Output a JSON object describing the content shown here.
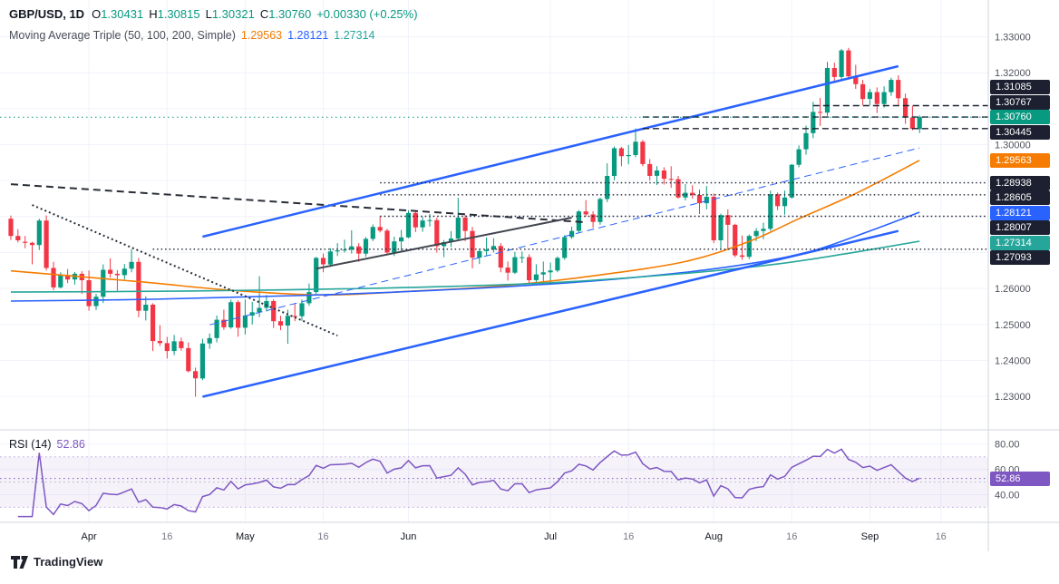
{
  "header": {
    "symbol_title": "GBP/USD, 1D",
    "ohlc": {
      "open_label": "O",
      "open": "1.30431",
      "high_label": "H",
      "high": "1.30815",
      "low_label": "L",
      "low": "1.30321",
      "close_label": "C",
      "close": "1.30760",
      "change": "+0.00330 (+0.25%)"
    },
    "indicator": {
      "name": "Moving Average Triple (50, 100, 200, Simple)",
      "ma50_value": "1.29563",
      "ma100_value": "1.28121",
      "ma200_value": "1.27314"
    }
  },
  "rsi_pane": {
    "label": "RSI (14)",
    "value": "52.86"
  },
  "footer": {
    "logo_text": "TradingView"
  },
  "colors": {
    "up": "#089981",
    "down": "#f23645",
    "ma50": "#f57c00",
    "ma100": "#2962ff",
    "ma200": "#26a69a",
    "rsi": "#7e57c2",
    "level_badge": "#1c2030",
    "grid": "#f0f3fa",
    "axis_text": "#50535e",
    "separator": "#d1d4dc"
  },
  "chart_data": {
    "type": "candlestick",
    "title": "GBP/USD, 1D",
    "price_axis": {
      "min": 1.2217,
      "max": 1.3382,
      "tick_min": 1.23,
      "tick_max": 1.33,
      "tick_step": 0.01,
      "visible_labels": [
        "1.33000",
        "1.32000",
        "1.30000",
        "1.26000",
        "1.25000",
        "1.24000",
        "1.23000"
      ]
    },
    "time_axis": {
      "labels": [
        {
          "t": "Apr",
          "i": 11,
          "major": true
        },
        {
          "t": "16",
          "i": 22,
          "major": false
        },
        {
          "t": "May",
          "i": 33,
          "major": true
        },
        {
          "t": "16",
          "i": 44,
          "major": false
        },
        {
          "t": "Jun",
          "i": 56,
          "major": true
        },
        {
          "t": "Jul",
          "i": 76,
          "major": true
        },
        {
          "t": "16",
          "i": 87,
          "major": false
        },
        {
          "t": "Aug",
          "i": 99,
          "major": true
        },
        {
          "t": "16",
          "i": 110,
          "major": false
        },
        {
          "t": "Sep",
          "i": 121,
          "major": true
        },
        {
          "t": "16",
          "i": 131,
          "major": false
        }
      ]
    },
    "last_price": 1.3076,
    "candles": [
      [
        1.2794,
        1.2803,
        1.2735,
        1.2746
      ],
      [
        1.2746,
        1.2765,
        1.2728,
        1.2734
      ],
      [
        1.273,
        1.2746,
        1.2712,
        1.2727
      ],
      [
        1.2727,
        1.273,
        1.2667,
        1.2721
      ],
      [
        1.2721,
        1.2794,
        1.2707,
        1.2789
      ],
      [
        1.2789,
        1.2803,
        1.265,
        1.2657
      ],
      [
        1.2657,
        1.2674,
        1.2595,
        1.2603
      ],
      [
        1.2603,
        1.2645,
        1.26,
        1.2637
      ],
      [
        1.2637,
        1.2654,
        1.2615,
        1.2625
      ],
      [
        1.2625,
        1.2646,
        1.2611,
        1.2641
      ],
      [
        1.2641,
        1.2648,
        1.2585,
        1.2623
      ],
      [
        1.2623,
        1.265,
        1.2538,
        1.2551
      ],
      [
        1.2551,
        1.2585,
        1.254,
        1.2577
      ],
      [
        1.2577,
        1.2667,
        1.256,
        1.2652
      ],
      [
        1.2652,
        1.2684,
        1.263,
        1.2641
      ],
      [
        1.2641,
        1.2651,
        1.2594,
        1.2637
      ],
      [
        1.2637,
        1.2668,
        1.2625,
        1.2655
      ],
      [
        1.2655,
        1.2709,
        1.2645,
        1.2674
      ],
      [
        1.2674,
        1.2685,
        1.252,
        1.2538
      ],
      [
        1.2538,
        1.2578,
        1.2511,
        1.2555
      ],
      [
        1.2555,
        1.2559,
        1.2426,
        1.2454
      ],
      [
        1.2454,
        1.2498,
        1.244,
        1.2448
      ],
      [
        1.2448,
        1.2465,
        1.2405,
        1.2426
      ],
      [
        1.2426,
        1.2471,
        1.2415,
        1.2453
      ],
      [
        1.2453,
        1.2463,
        1.2427,
        1.2434
      ],
      [
        1.2434,
        1.245,
        1.2367,
        1.237
      ],
      [
        1.237,
        1.238,
        1.2299,
        1.235
      ],
      [
        1.235,
        1.246,
        1.2345,
        1.2447
      ],
      [
        1.2447,
        1.2475,
        1.2432,
        1.2462
      ],
      [
        1.2462,
        1.2525,
        1.245,
        1.2513
      ],
      [
        1.2513,
        1.2541,
        1.2485,
        1.2492
      ],
      [
        1.2492,
        1.2569,
        1.2488,
        1.2562
      ],
      [
        1.2562,
        1.2567,
        1.2466,
        1.2491
      ],
      [
        1.2491,
        1.2569,
        1.2472,
        1.2525
      ],
      [
        1.2525,
        1.2563,
        1.25,
        1.2534
      ],
      [
        1.2534,
        1.2634,
        1.252,
        1.2546
      ],
      [
        1.2546,
        1.2582,
        1.2536,
        1.2565
      ],
      [
        1.2565,
        1.257,
        1.249,
        1.2509
      ],
      [
        1.2509,
        1.2524,
        1.2484,
        1.2497
      ],
      [
        1.2497,
        1.2541,
        1.2446,
        1.2524
      ],
      [
        1.2524,
        1.2559,
        1.2509,
        1.2523
      ],
      [
        1.2523,
        1.2569,
        1.251,
        1.2559
      ],
      [
        1.2559,
        1.2614,
        1.2552,
        1.259
      ],
      [
        1.259,
        1.2688,
        1.2584,
        1.2685
      ],
      [
        1.2685,
        1.2697,
        1.2645,
        1.2667
      ],
      [
        1.2667,
        1.2712,
        1.266,
        1.2703
      ],
      [
        1.2703,
        1.2726,
        1.269,
        1.2706
      ],
      [
        1.2706,
        1.2736,
        1.27,
        1.2708
      ],
      [
        1.2708,
        1.2762,
        1.2697,
        1.2717
      ],
      [
        1.2717,
        1.2726,
        1.2674,
        1.2697
      ],
      [
        1.2697,
        1.2743,
        1.2688,
        1.2738
      ],
      [
        1.2738,
        1.2778,
        1.2732,
        1.2771
      ],
      [
        1.2771,
        1.2801,
        1.2756,
        1.2761
      ],
      [
        1.2761,
        1.2766,
        1.2695,
        1.27
      ],
      [
        1.27,
        1.2744,
        1.269,
        1.2731
      ],
      [
        1.2731,
        1.2763,
        1.2705,
        1.2742
      ],
      [
        1.2742,
        1.2817,
        1.274,
        1.281
      ],
      [
        1.281,
        1.2818,
        1.2757,
        1.277
      ],
      [
        1.277,
        1.2799,
        1.2758,
        1.2789
      ],
      [
        1.2789,
        1.2807,
        1.2772,
        1.279
      ],
      [
        1.279,
        1.2797,
        1.27,
        1.2718
      ],
      [
        1.2718,
        1.2735,
        1.2687,
        1.2729
      ],
      [
        1.2729,
        1.276,
        1.2715,
        1.2739
      ],
      [
        1.2739,
        1.2852,
        1.2735,
        1.2797
      ],
      [
        1.2797,
        1.2804,
        1.2732,
        1.276
      ],
      [
        1.276,
        1.2771,
        1.2656,
        1.2686
      ],
      [
        1.2686,
        1.2711,
        1.2668,
        1.2704
      ],
      [
        1.2704,
        1.2742,
        1.2691,
        1.2708
      ],
      [
        1.2708,
        1.274,
        1.27,
        1.2718
      ],
      [
        1.2718,
        1.2726,
        1.2645,
        1.2658
      ],
      [
        1.2658,
        1.2675,
        1.2622,
        1.2644
      ],
      [
        1.2644,
        1.2702,
        1.264,
        1.2687
      ],
      [
        1.2687,
        1.2703,
        1.2671,
        1.2687
      ],
      [
        1.2687,
        1.2695,
        1.2616,
        1.2623
      ],
      [
        1.2623,
        1.2667,
        1.2612,
        1.2639
      ],
      [
        1.2639,
        1.2675,
        1.2613,
        1.2645
      ],
      [
        1.2645,
        1.2672,
        1.2615,
        1.265
      ],
      [
        1.265,
        1.2689,
        1.2645,
        1.2685
      ],
      [
        1.2685,
        1.2748,
        1.268,
        1.2743
      ],
      [
        1.2743,
        1.2772,
        1.2738,
        1.276
      ],
      [
        1.276,
        1.2818,
        1.2753,
        1.2814
      ],
      [
        1.2814,
        1.2846,
        1.28,
        1.2806
      ],
      [
        1.2806,
        1.2815,
        1.2769,
        1.2785
      ],
      [
        1.2785,
        1.2853,
        1.2777,
        1.2849
      ],
      [
        1.2849,
        1.2948,
        1.284,
        1.2913
      ],
      [
        1.2913,
        1.2995,
        1.2901,
        1.299
      ],
      [
        1.299,
        1.2994,
        1.294,
        1.2968
      ],
      [
        1.2968,
        1.2999,
        1.2945,
        1.2971
      ],
      [
        1.2971,
        1.3045,
        1.2965,
        1.3008
      ],
      [
        1.3008,
        1.3013,
        1.294,
        1.2946
      ],
      [
        1.2946,
        1.296,
        1.29,
        1.2913
      ],
      [
        1.2913,
        1.294,
        1.2888,
        1.2928
      ],
      [
        1.2928,
        1.2937,
        1.2889,
        1.2905
      ],
      [
        1.2905,
        1.294,
        1.288,
        1.2904
      ],
      [
        1.2904,
        1.2913,
        1.285,
        1.2853
      ],
      [
        1.2853,
        1.289,
        1.2845,
        1.2866
      ],
      [
        1.2866,
        1.2887,
        1.285,
        1.286
      ],
      [
        1.286,
        1.2875,
        1.2807,
        1.2837
      ],
      [
        1.2837,
        1.2885,
        1.282,
        1.2855
      ],
      [
        1.2855,
        1.2864,
        1.2726,
        1.2734
      ],
      [
        1.2734,
        1.2808,
        1.2707,
        1.2804
      ],
      [
        1.2804,
        1.282,
        1.2708,
        1.2777
      ],
      [
        1.2777,
        1.278,
        1.2687,
        1.2692
      ],
      [
        1.2692,
        1.2747,
        1.268,
        1.2688
      ],
      [
        1.2688,
        1.275,
        1.2682,
        1.2746
      ],
      [
        1.2746,
        1.2768,
        1.2732,
        1.276
      ],
      [
        1.276,
        1.2783,
        1.2737,
        1.2766
      ],
      [
        1.2766,
        1.2872,
        1.276,
        1.2862
      ],
      [
        1.2862,
        1.2867,
        1.2818,
        1.2829
      ],
      [
        1.2829,
        1.2872,
        1.2805,
        1.2853
      ],
      [
        1.2853,
        1.2946,
        1.285,
        1.2944
      ],
      [
        1.2944,
        1.2998,
        1.2937,
        1.2987
      ],
      [
        1.2987,
        1.3053,
        1.2972,
        1.3032
      ],
      [
        1.3032,
        1.3119,
        1.3018,
        1.3091
      ],
      [
        1.3091,
        1.313,
        1.3052,
        1.3089
      ],
      [
        1.3089,
        1.323,
        1.308,
        1.3213
      ],
      [
        1.3213,
        1.3228,
        1.3175,
        1.3188
      ],
      [
        1.3188,
        1.3266,
        1.318,
        1.3262
      ],
      [
        1.3262,
        1.3269,
        1.3185,
        1.319
      ],
      [
        1.319,
        1.3222,
        1.3155,
        1.3168
      ],
      [
        1.3168,
        1.318,
        1.311,
        1.3127
      ],
      [
        1.3127,
        1.3155,
        1.311,
        1.3146
      ],
      [
        1.3146,
        1.3159,
        1.3088,
        1.3113
      ],
      [
        1.3113,
        1.3162,
        1.3103,
        1.3146
      ],
      [
        1.3146,
        1.3186,
        1.3136,
        1.318
      ],
      [
        1.318,
        1.3193,
        1.311,
        1.3129
      ],
      [
        1.3129,
        1.3142,
        1.3058,
        1.3075
      ],
      [
        1.3075,
        1.3108,
        1.304,
        1.3044
      ],
      [
        1.30431,
        1.30815,
        1.30321,
        1.3076
      ]
    ],
    "moving_averages": [
      {
        "name": "sma-50",
        "period": 50,
        "color": "#f57c00",
        "last_value": 1.29563,
        "points": [
          [
            0,
            1.2649
          ],
          [
            18,
            1.2619
          ],
          [
            31,
            1.2595
          ],
          [
            44,
            1.2582
          ],
          [
            56,
            1.2592
          ],
          [
            69,
            1.2607
          ],
          [
            82,
            1.2635
          ],
          [
            95,
            1.2675
          ],
          [
            104,
            1.2731
          ],
          [
            111,
            1.2794
          ],
          [
            119,
            1.2864
          ],
          [
            128,
            1.29563
          ]
        ]
      },
      {
        "name": "sma-100",
        "period": 100,
        "color": "#2962ff",
        "last_value": 1.28121,
        "points": [
          [
            0,
            1.2565
          ],
          [
            20,
            1.257
          ],
          [
            40,
            1.258
          ],
          [
            60,
            1.2595
          ],
          [
            80,
            1.2618
          ],
          [
            95,
            1.2645
          ],
          [
            105,
            1.2672
          ],
          [
            113,
            1.2705
          ],
          [
            121,
            1.276
          ],
          [
            128,
            1.28121
          ]
        ]
      },
      {
        "name": "sma-200",
        "period": 200,
        "color": "#26a69a",
        "last_value": 1.27314,
        "points": [
          [
            0,
            1.259
          ],
          [
            25,
            1.2593
          ],
          [
            50,
            1.26
          ],
          [
            75,
            1.2615
          ],
          [
            95,
            1.2642
          ],
          [
            108,
            1.2668
          ],
          [
            118,
            1.2698
          ],
          [
            128,
            1.27314
          ]
        ]
      }
    ],
    "levels": [
      {
        "value": 1.31085,
        "from_i": 113,
        "style": "dashed"
      },
      {
        "value": 1.30767,
        "from_i": 89,
        "style": "dashed"
      },
      {
        "value": 1.30445,
        "from_i": 89,
        "style": "dashed"
      },
      {
        "value": 1.28938,
        "from_i": 52,
        "style": "dotted"
      },
      {
        "value": 1.28605,
        "from_i": 52,
        "style": "dotted"
      },
      {
        "value": 1.28007,
        "from_i": 52,
        "style": "dotted"
      },
      {
        "value": 1.27093,
        "from_i": 20,
        "style": "dotted"
      }
    ],
    "trendlines": [
      {
        "name": "descending-dashed-trendline",
        "color": "#2a2e39",
        "width": 2,
        "style": "dashed",
        "points": [
          [
            0,
            1.289
          ],
          [
            81,
            1.2784
          ]
        ]
      },
      {
        "name": "descending-dotted-trendline",
        "color": "#2a2e39",
        "width": 2,
        "style": "dotted",
        "points": [
          [
            3,
            1.2832
          ],
          [
            46,
            1.2469
          ]
        ]
      },
      {
        "name": "rising-solid-trendline",
        "color": "#434651",
        "width": 2,
        "style": "solid",
        "points": [
          [
            43,
            1.2655
          ],
          [
            79,
            1.2797
          ]
        ]
      },
      {
        "name": "rising-dashed-blue-trendline",
        "color": "#2962ff",
        "width": 1,
        "style": "dashed",
        "points": [
          [
            28,
            1.2499
          ],
          [
            128,
            1.2991
          ]
        ]
      },
      {
        "name": "channel-upper-line",
        "color": "#2962ff",
        "width": 2.5,
        "style": "solid",
        "points": [
          [
            27,
            1.2744
          ],
          [
            125,
            1.3218
          ]
        ]
      },
      {
        "name": "channel-lower-line",
        "color": "#2962ff",
        "width": 2.5,
        "style": "solid",
        "points": [
          [
            27,
            1.2299
          ],
          [
            125,
            1.276
          ]
        ]
      }
    ],
    "price_badges": [
      {
        "text": "1.31085",
        "value": 1.31085,
        "type": "level"
      },
      {
        "text": "1.30767",
        "value": 1.30767,
        "type": "level"
      },
      {
        "text": "1.30760",
        "value": 1.3076,
        "type": "last"
      },
      {
        "text": "1.30445",
        "value": 1.30445,
        "type": "level"
      },
      {
        "text": "1.29563",
        "value": 1.29563,
        "type": "ma50"
      },
      {
        "text": "1.28938",
        "value": 1.28938,
        "type": "level"
      },
      {
        "text": "1.28605",
        "value": 1.28605,
        "type": "level"
      },
      {
        "text": "1.28121",
        "value": 1.28121,
        "type": "ma100"
      },
      {
        "text": "1.28007",
        "value": 1.28007,
        "type": "level"
      },
      {
        "text": "1.27314",
        "value": 1.27314,
        "type": "ma200"
      },
      {
        "text": "1.27093",
        "value": 1.27093,
        "type": "level"
      }
    ],
    "rsi": {
      "period": 14,
      "value": 52.86,
      "color": "#7e57c2",
      "axis_max": 87.7,
      "axis_min": 21.7,
      "upper_band": 70,
      "middle_band": 50,
      "lower_band": 30,
      "axis_labels": [
        "80.00",
        "60.00",
        "40.00"
      ],
      "axis_label_values": [
        80,
        60,
        40
      ]
    }
  }
}
